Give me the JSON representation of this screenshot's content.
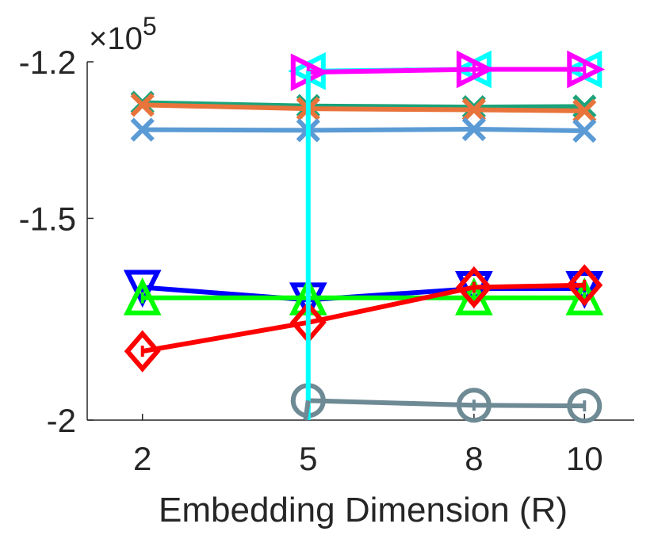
{
  "chart_data": {
    "type": "line",
    "title": "",
    "xlabel": "Embedding Dimension (R)",
    "ylabel": "",
    "exponent_label": "×10",
    "exponent_power": "5",
    "x_ticks": [
      2,
      5,
      8,
      10
    ],
    "x_tick_labels": [
      "2",
      "5",
      "8",
      "10"
    ],
    "y_ticks": [
      -2.0,
      -1.5,
      -1.2
    ],
    "y_tick_labels": [
      "-2",
      "-1.5",
      "-1.2"
    ],
    "xlim": [
      1.0,
      10.9
    ],
    "ylim": [
      -2.0,
      -1.2
    ],
    "y_scale": "log",
    "legend": "none",
    "grid": false,
    "series": [
      {
        "name": "cyan-left-triangle",
        "color": "#00FFFF",
        "marker": "triangle-left",
        "x": [
          5,
          8,
          10
        ],
        "y": [
          -1.216,
          -1.213,
          -1.213
        ]
      },
      {
        "name": "magenta-right-triangle",
        "color": "#FF00FF",
        "marker": "triangle-right",
        "x": [
          5,
          8,
          10
        ],
        "y": [
          -1.218,
          -1.213,
          -1.213
        ]
      },
      {
        "name": "green-x",
        "color": "#1AA37A",
        "marker": "x",
        "x": [
          2,
          5,
          8,
          10
        ],
        "y": [
          -1.272,
          -1.278,
          -1.28,
          -1.279
        ]
      },
      {
        "name": "orange-x",
        "color": "#E8743B",
        "marker": "x",
        "x": [
          2,
          5,
          8,
          10
        ],
        "y": [
          -1.276,
          -1.283,
          -1.285,
          -1.287
        ]
      },
      {
        "name": "lightblue-x",
        "color": "#5B9BD5",
        "marker": "x",
        "x": [
          2,
          5,
          8,
          10
        ],
        "y": [
          -1.322,
          -1.323,
          -1.321,
          -1.324
        ]
      },
      {
        "name": "blue-down-triangle",
        "color": "#0000FF",
        "marker": "triangle-down",
        "x": [
          2,
          5,
          8,
          10
        ],
        "y": [
          -1.655,
          -1.685,
          -1.658,
          -1.658
        ]
      },
      {
        "name": "green-up-triangle",
        "color": "#00FF00",
        "marker": "triangle-up",
        "x": [
          2,
          5,
          8,
          10
        ],
        "y": [
          -1.68,
          -1.68,
          -1.68,
          -1.68
        ]
      },
      {
        "name": "red-diamond",
        "color": "#FF0000",
        "marker": "diamond",
        "x": [
          2,
          5,
          8,
          10
        ],
        "y": [
          -1.813,
          -1.74,
          -1.655,
          -1.65
        ]
      },
      {
        "name": "gray-circle",
        "color": "#6E8A94",
        "marker": "circle",
        "x": [
          5,
          8,
          10
        ],
        "y": [
          -1.945,
          -1.958,
          -1.96
        ]
      },
      {
        "name": "cyan-drop-line",
        "color": "#00FFFF",
        "marker": "none",
        "x": [
          5,
          5
        ],
        "y": [
          -1.216,
          -2.0
        ]
      },
      {
        "name": "gray-drop-line",
        "color": "#6E8A94",
        "marker": "none",
        "x": [
          5,
          4.95
        ],
        "y": [
          -1.945,
          -2.0
        ]
      }
    ]
  }
}
